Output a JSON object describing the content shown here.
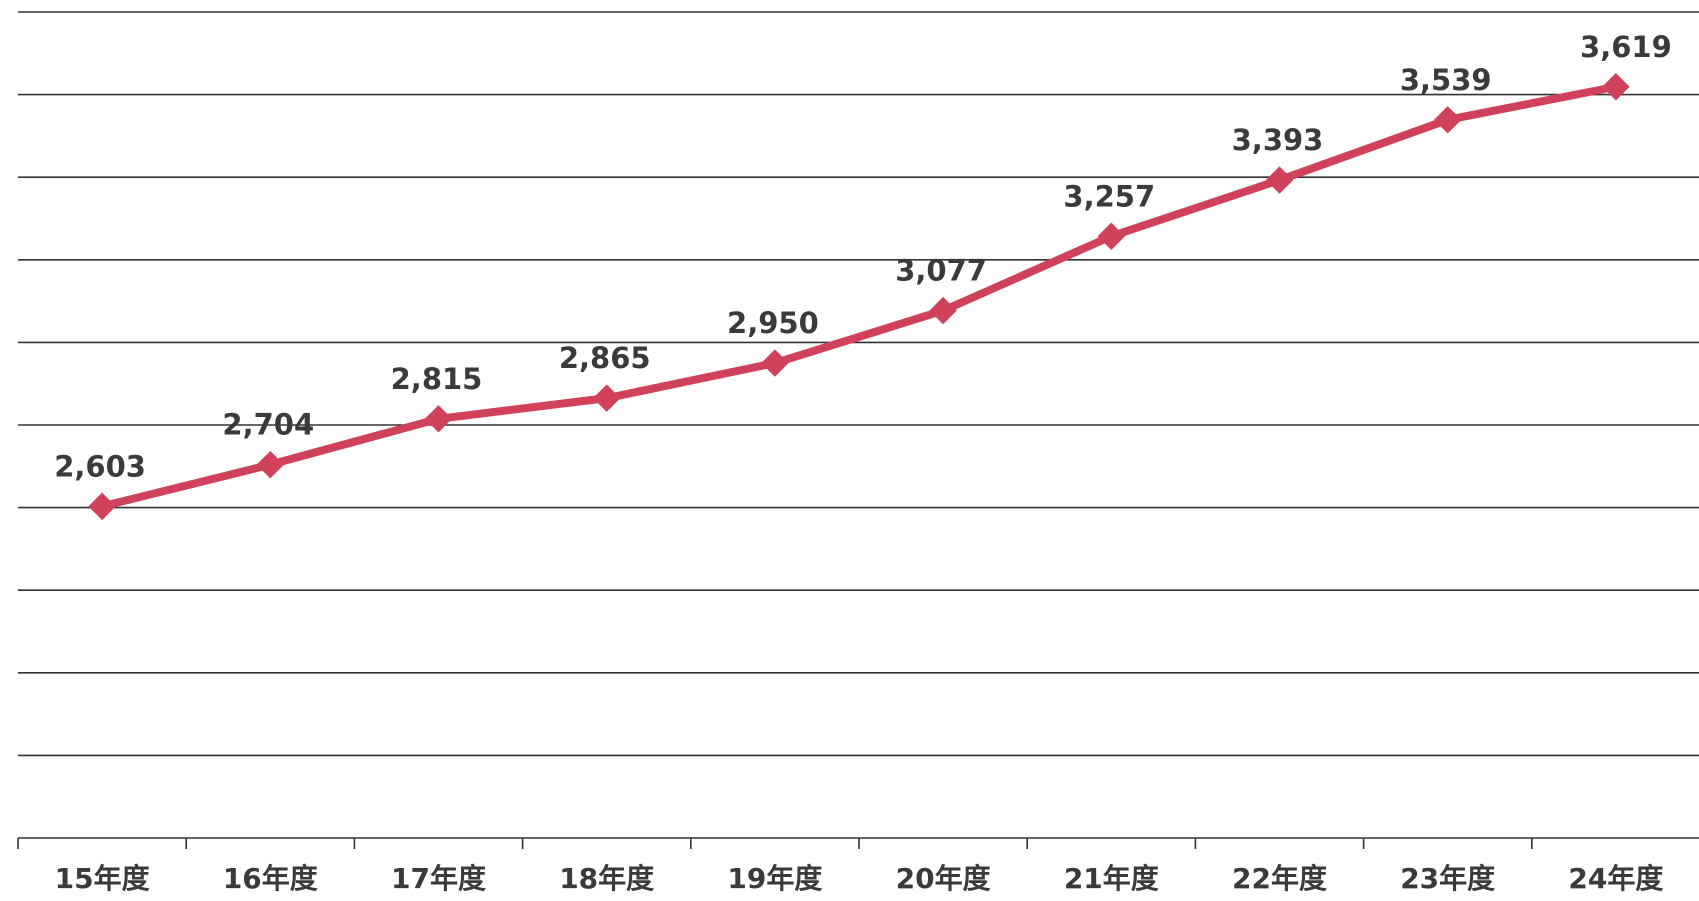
{
  "chart_data": {
    "type": "line",
    "title": "",
    "xlabel": "",
    "ylabel": "",
    "categories": [
      "15年度",
      "16年度",
      "17年度",
      "18年度",
      "19年度",
      "20年度",
      "21年度",
      "22年度",
      "23年度",
      "24年度"
    ],
    "series": [
      {
        "values": [
          2603,
          2704,
          2815,
          2865,
          2950,
          3077,
          3257,
          3393,
          3539,
          3619
        ],
        "data_labels": [
          "2,603",
          "2,704",
          "2,815",
          "2,865",
          "2,950",
          "3,077",
          "3,257",
          "3,393",
          "3,539",
          "3,619"
        ],
        "color": "#d0415a",
        "marker": "diamond"
      }
    ],
    "ylim": [
      1800,
      3800
    ],
    "y_gridline_step": 200,
    "grid": true,
    "y_tick_labels_shown": false,
    "legend": "none"
  }
}
